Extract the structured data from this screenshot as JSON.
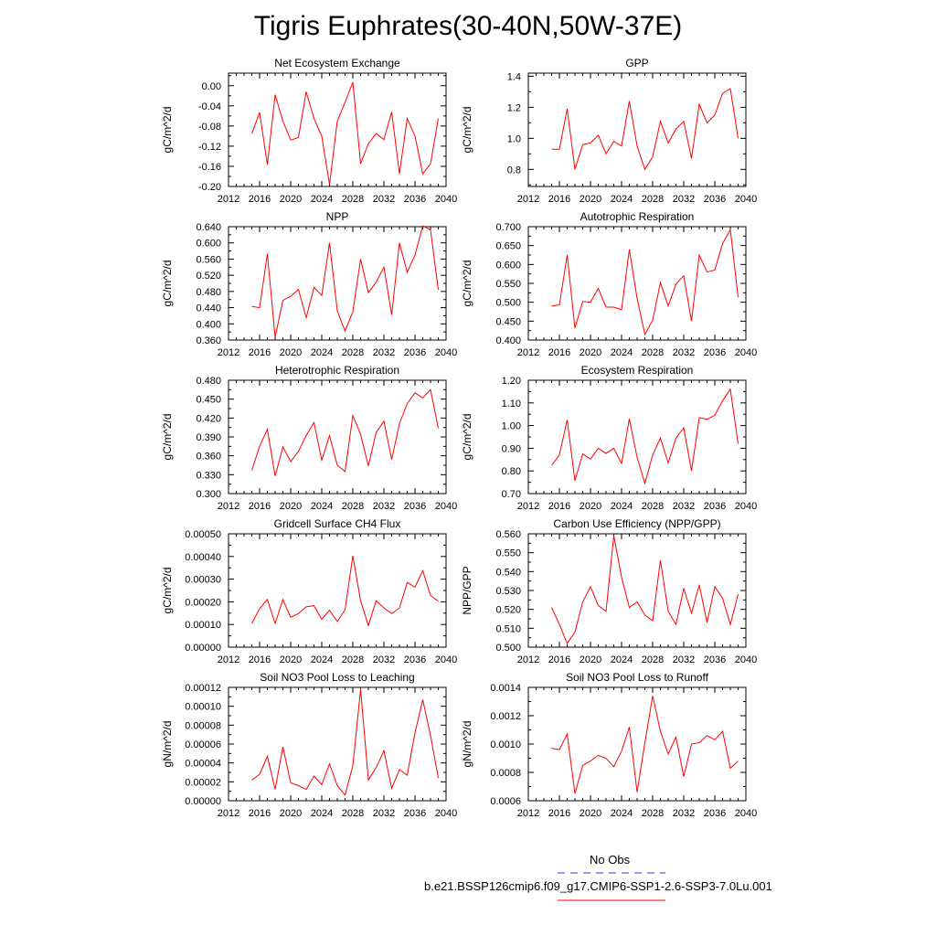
{
  "title": "Tigris Euphrates(30-40N,50W-37E)",
  "legend": {
    "items": [
      {
        "label": "No Obs",
        "color": "#3333cc",
        "dash": "dashed"
      },
      {
        "label": "b.e21.BSSP126cmip6.f09_g17.CMIP6-SSP1-2.6-SSP3-7.0Lu.001",
        "color": "#ff0000",
        "dash": "solid"
      }
    ]
  },
  "chart_data": [
    {
      "type": "line",
      "title": "Net Ecosystem Exchange",
      "ylabel": "gC/m^2/d",
      "xlim": [
        2012,
        2040
      ],
      "ylim": [
        -0.2,
        0.025
      ],
      "xticks": [
        "2012",
        "2016",
        "2020",
        "2024",
        "2028",
        "2032",
        "2036",
        "2040"
      ],
      "yticks": [
        "-0.20",
        "-0.16",
        "-0.12",
        "-0.08",
        "-0.04",
        "0.00"
      ],
      "x": [
        2015,
        2016,
        2017,
        2018,
        2019,
        2020,
        2021,
        2022,
        2023,
        2024,
        2025,
        2026,
        2027,
        2028,
        2029,
        2030,
        2031,
        2032,
        2033,
        2034,
        2035,
        2036,
        2037,
        2038,
        2039
      ],
      "series": [
        {
          "color": "#ff0000",
          "values": [
            -0.095,
            -0.053,
            -0.157,
            -0.018,
            -0.07,
            -0.108,
            -0.103,
            -0.012,
            -0.065,
            -0.1,
            -0.196,
            -0.07,
            -0.033,
            0.007,
            -0.155,
            -0.115,
            -0.095,
            -0.107,
            -0.052,
            -0.175,
            -0.065,
            -0.1,
            -0.175,
            -0.155,
            -0.065
          ]
        }
      ]
    },
    {
      "type": "line",
      "title": "GPP",
      "ylabel": "gC/m^2/d",
      "xlim": [
        2012,
        2040
      ],
      "ylim": [
        0.69,
        1.42
      ],
      "xticks": [
        "2012",
        "2016",
        "2020",
        "2024",
        "2028",
        "2032",
        "2036",
        "2040"
      ],
      "yticks": [
        "0.8",
        "1.0",
        "1.2",
        "1.4"
      ],
      "x": [
        2015,
        2016,
        2017,
        2018,
        2019,
        2020,
        2021,
        2022,
        2023,
        2024,
        2025,
        2026,
        2027,
        2028,
        2029,
        2030,
        2031,
        2032,
        2033,
        2034,
        2035,
        2036,
        2037,
        2038,
        2039
      ],
      "series": [
        {
          "color": "#ff0000",
          "values": [
            0.93,
            0.93,
            1.19,
            0.8,
            0.96,
            0.97,
            1.02,
            0.9,
            0.98,
            0.95,
            1.24,
            0.95,
            0.8,
            0.88,
            1.11,
            0.97,
            1.06,
            1.11,
            0.87,
            1.22,
            1.1,
            1.15,
            1.29,
            1.32,
            1.0
          ]
        }
      ]
    },
    {
      "type": "line",
      "title": "NPP",
      "ylabel": "gC/m^2/d",
      "xlim": [
        2012,
        2040
      ],
      "ylim": [
        0.36,
        0.64
      ],
      "xticks": [
        "2012",
        "2016",
        "2020",
        "2024",
        "2028",
        "2032",
        "2036",
        "2040"
      ],
      "yticks": [
        "0.360",
        "0.400",
        "0.440",
        "0.480",
        "0.520",
        "0.560",
        "0.600",
        "0.640"
      ],
      "x": [
        2015,
        2016,
        2017,
        2018,
        2019,
        2020,
        2021,
        2022,
        2023,
        2024,
        2025,
        2026,
        2027,
        2028,
        2029,
        2030,
        2031,
        2032,
        2033,
        2034,
        2035,
        2036,
        2037,
        2038,
        2039
      ],
      "series": [
        {
          "color": "#ff0000",
          "values": [
            0.443,
            0.44,
            0.573,
            0.367,
            0.458,
            0.468,
            0.485,
            0.415,
            0.49,
            0.47,
            0.6,
            0.432,
            0.382,
            0.43,
            0.56,
            0.477,
            0.503,
            0.54,
            0.422,
            0.6,
            0.527,
            0.57,
            0.642,
            0.632,
            0.484
          ]
        }
      ]
    },
    {
      "type": "line",
      "title": "Autotrophic Respiration",
      "ylabel": "gC/m^2/d",
      "xlim": [
        2012,
        2040
      ],
      "ylim": [
        0.4,
        0.7
      ],
      "xticks": [
        "2012",
        "2016",
        "2020",
        "2024",
        "2028",
        "2032",
        "2036",
        "2040"
      ],
      "yticks": [
        "0.400",
        "0.450",
        "0.500",
        "0.550",
        "0.600",
        "0.650",
        "0.700"
      ],
      "x": [
        2015,
        2016,
        2017,
        2018,
        2019,
        2020,
        2021,
        2022,
        2023,
        2024,
        2025,
        2026,
        2027,
        2028,
        2029,
        2030,
        2031,
        2032,
        2033,
        2034,
        2035,
        2036,
        2037,
        2038,
        2039
      ],
      "series": [
        {
          "color": "#ff0000",
          "values": [
            0.49,
            0.493,
            0.625,
            0.432,
            0.502,
            0.5,
            0.537,
            0.487,
            0.487,
            0.48,
            0.64,
            0.51,
            0.415,
            0.452,
            0.552,
            0.49,
            0.548,
            0.57,
            0.45,
            0.625,
            0.58,
            0.585,
            0.655,
            0.692,
            0.513
          ]
        }
      ]
    },
    {
      "type": "line",
      "title": "Heterotrophic Respiration",
      "ylabel": "gC/m^2/d",
      "xlim": [
        2012,
        2040
      ],
      "ylim": [
        0.3,
        0.48
      ],
      "xticks": [
        "2012",
        "2016",
        "2020",
        "2024",
        "2028",
        "2032",
        "2036",
        "2040"
      ],
      "yticks": [
        "0.300",
        "0.330",
        "0.360",
        "0.390",
        "0.420",
        "0.450",
        "0.480"
      ],
      "x": [
        2015,
        2016,
        2017,
        2018,
        2019,
        2020,
        2021,
        2022,
        2023,
        2024,
        2025,
        2026,
        2027,
        2028,
        2029,
        2030,
        2031,
        2032,
        2033,
        2034,
        2035,
        2036,
        2037,
        2038,
        2039
      ],
      "series": [
        {
          "color": "#ff0000",
          "values": [
            0.337,
            0.375,
            0.402,
            0.328,
            0.374,
            0.351,
            0.367,
            0.392,
            0.413,
            0.353,
            0.392,
            0.345,
            0.335,
            0.424,
            0.394,
            0.344,
            0.397,
            0.415,
            0.354,
            0.411,
            0.443,
            0.46,
            0.452,
            0.465,
            0.404
          ]
        }
      ]
    },
    {
      "type": "line",
      "title": "Ecosystem Respiration",
      "ylabel": "gC/m^2/d",
      "xlim": [
        2012,
        2040
      ],
      "ylim": [
        0.7,
        1.2
      ],
      "xticks": [
        "2012",
        "2016",
        "2020",
        "2024",
        "2028",
        "2032",
        "2036",
        "2040"
      ],
      "yticks": [
        "0.70",
        "0.80",
        "0.90",
        "1.00",
        "1.10",
        "1.20"
      ],
      "x": [
        2015,
        2016,
        2017,
        2018,
        2019,
        2020,
        2021,
        2022,
        2023,
        2024,
        2025,
        2026,
        2027,
        2028,
        2029,
        2030,
        2031,
        2032,
        2033,
        2034,
        2035,
        2036,
        2037,
        2038,
        2039
      ],
      "series": [
        {
          "color": "#ff0000",
          "values": [
            0.825,
            0.87,
            1.025,
            0.757,
            0.875,
            0.852,
            0.9,
            0.877,
            0.9,
            0.833,
            1.03,
            0.86,
            0.745,
            0.87,
            0.945,
            0.835,
            0.945,
            0.99,
            0.8,
            1.035,
            1.028,
            1.045,
            1.11,
            1.16,
            0.92
          ]
        }
      ]
    },
    {
      "type": "line",
      "title": "Gridcell Surface CH4 Flux",
      "ylabel": "gC/m^2/d",
      "xlim": [
        2012,
        2040
      ],
      "ylim": [
        0.0,
        0.0005
      ],
      "xticks": [
        "2012",
        "2016",
        "2020",
        "2024",
        "2028",
        "2032",
        "2036",
        "2040"
      ],
      "yticks": [
        "0.00000",
        "0.00010",
        "0.00020",
        "0.00030",
        "0.00040",
        "0.00050"
      ],
      "x": [
        2015,
        2016,
        2017,
        2018,
        2019,
        2020,
        2021,
        2022,
        2023,
        2024,
        2025,
        2026,
        2027,
        2028,
        2029,
        2030,
        2031,
        2032,
        2033,
        2034,
        2035,
        2036,
        2037,
        2038,
        2039
      ],
      "series": [
        {
          "color": "#ff0000",
          "values": [
            0.000105,
            0.00017,
            0.00021,
            0.000105,
            0.00021,
            0.000132,
            0.000148,
            0.000178,
            0.000183,
            0.000123,
            0.000163,
            0.000113,
            0.000165,
            0.000403,
            0.000205,
            9.5e-05,
            0.000205,
            0.000173,
            0.000148,
            0.000173,
            0.000285,
            0.000265,
            0.000338,
            0.000228,
            0.000203
          ]
        }
      ]
    },
    {
      "type": "line",
      "title": "Carbon Use Efficiency (NPP/GPP)",
      "ylabel": "NPP/GPP",
      "xlim": [
        2012,
        2040
      ],
      "ylim": [
        0.5,
        0.56
      ],
      "xticks": [
        "2012",
        "2016",
        "2020",
        "2024",
        "2028",
        "2032",
        "2036",
        "2040"
      ],
      "yticks": [
        "0.500",
        "0.510",
        "0.520",
        "0.530",
        "0.540",
        "0.550",
        "0.560"
      ],
      "x": [
        2015,
        2016,
        2017,
        2018,
        2019,
        2020,
        2021,
        2022,
        2023,
        2024,
        2025,
        2026,
        2027,
        2028,
        2029,
        2030,
        2031,
        2032,
        2033,
        2034,
        2035,
        2036,
        2037,
        2038,
        2039
      ],
      "series": [
        {
          "color": "#ff0000",
          "values": [
            0.521,
            0.512,
            0.502,
            0.508,
            0.524,
            0.532,
            0.522,
            0.519,
            0.559,
            0.537,
            0.521,
            0.524,
            0.517,
            0.514,
            0.546,
            0.519,
            0.512,
            0.531,
            0.518,
            0.533,
            0.513,
            0.532,
            0.526,
            0.512,
            0.528
          ]
        }
      ]
    },
    {
      "type": "line",
      "title": "Soil NO3 Pool Loss to Leaching",
      "ylabel": "gN/m^2/d",
      "xlim": [
        2012,
        2040
      ],
      "ylim": [
        0.0,
        0.00012
      ],
      "xticks": [
        "2012",
        "2016",
        "2020",
        "2024",
        "2028",
        "2032",
        "2036",
        "2040"
      ],
      "yticks": [
        "0.00000",
        "0.00002",
        "0.00004",
        "0.00006",
        "0.00008",
        "0.00010",
        "0.00012"
      ],
      "x": [
        2015,
        2016,
        2017,
        2018,
        2019,
        2020,
        2021,
        2022,
        2023,
        2024,
        2025,
        2026,
        2027,
        2028,
        2029,
        2030,
        2031,
        2032,
        2033,
        2034,
        2035,
        2036,
        2037,
        2038,
        2039
      ],
      "series": [
        {
          "color": "#ff0000",
          "values": [
            2.2e-05,
            2.8e-05,
            4.7e-05,
            1.2e-05,
            5.7e-05,
            1.9e-05,
            1.6e-05,
            1.2e-05,
            2.6e-05,
            1.7e-05,
            3.9e-05,
            1.6e-05,
            6e-06,
            3.7e-05,
            0.000118,
            2.2e-05,
            3.5e-05,
            5.3e-05,
            1.3e-05,
            3.3e-05,
            2.7e-05,
            7.2e-05,
            0.000107,
            6.9e-05,
            2.4e-05
          ]
        }
      ]
    },
    {
      "type": "line",
      "title": "Soil NO3 Pool Loss to Runoff",
      "ylabel": "gN/m^2/d",
      "xlim": [
        2012,
        2040
      ],
      "ylim": [
        0.0006,
        0.0014
      ],
      "xticks": [
        "2012",
        "2016",
        "2020",
        "2024",
        "2028",
        "2032",
        "2036",
        "2040"
      ],
      "yticks": [
        "0.0006",
        "0.0008",
        "0.0010",
        "0.0012",
        "0.0014"
      ],
      "x": [
        2015,
        2016,
        2017,
        2018,
        2019,
        2020,
        2021,
        2022,
        2023,
        2024,
        2025,
        2026,
        2027,
        2028,
        2029,
        2030,
        2031,
        2032,
        2033,
        2034,
        2035,
        2036,
        2037,
        2038,
        2039
      ],
      "series": [
        {
          "color": "#ff0000",
          "values": [
            0.00097,
            0.00096,
            0.00107,
            0.00065,
            0.00085,
            0.00088,
            0.00092,
            0.0009,
            0.00084,
            0.00095,
            0.00112,
            0.00066,
            0.00101,
            0.00134,
            0.00109,
            0.00093,
            0.00105,
            0.00077,
            0.001,
            0.00101,
            0.00106,
            0.00103,
            0.00109,
            0.00083,
            0.00088
          ]
        }
      ]
    }
  ]
}
